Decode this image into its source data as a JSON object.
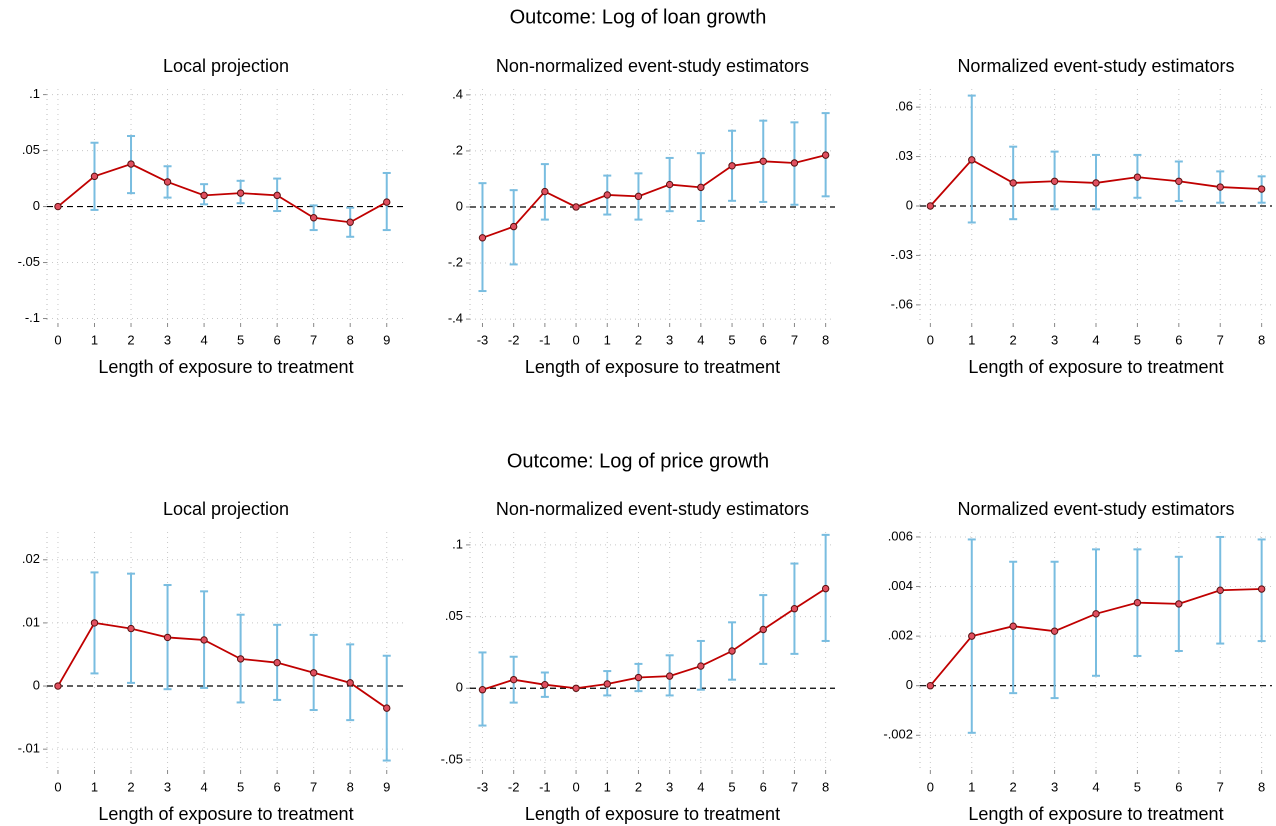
{
  "row_titles": [
    "Outcome: Log of loan growth",
    "Outcome: Log of price growth"
  ],
  "chart_data": [
    {
      "type": "line",
      "title": "Local projection",
      "x_label": "Length of exposure to treatment",
      "x": [
        0,
        1,
        2,
        3,
        4,
        5,
        6,
        7,
        8,
        9
      ],
      "series": [
        {
          "color": "#c00000",
          "ci_color": "#79bde0",
          "values": [
            0,
            0.027,
            0.038,
            0.022,
            0.01,
            0.012,
            0.01,
            -0.01,
            -0.014,
            0.004
          ],
          "lower": [
            null,
            -0.003,
            0.012,
            0.008,
            0.002,
            0.003,
            -0.004,
            -0.021,
            -0.027,
            -0.021
          ],
          "upper": [
            null,
            0.057,
            0.063,
            0.036,
            0.02,
            0.023,
            0.025,
            0.001,
            -0.001,
            0.03
          ]
        }
      ],
      "xlim": [
        -0.3,
        9.5
      ],
      "xticks": [
        0,
        1,
        2,
        3,
        4,
        5,
        6,
        7,
        8,
        9
      ],
      "ylim": [
        -0.104,
        0.105
      ],
      "yticks": [
        {
          "value": -0.1,
          "label": "-.1"
        },
        {
          "value": -0.05,
          "label": "-.05"
        },
        0,
        {
          "value": 0.05,
          "label": ".05"
        },
        {
          "value": 0.1,
          "label": ".1"
        }
      ],
      "grid": true,
      "zero_line": true
    },
    {
      "type": "line",
      "title": "Non-normalized event-study estimators",
      "x_label": "Length of exposure to treatment",
      "x": [
        -3,
        -2,
        -1,
        0,
        1,
        2,
        3,
        4,
        5,
        6,
        7,
        8
      ],
      "series": [
        {
          "color": "#c00000",
          "ci_color": "#79bde0",
          "values": [
            -0.11,
            -0.07,
            0.055,
            0,
            0.043,
            0.038,
            0.08,
            0.07,
            0.147,
            0.163,
            0.157,
            0.185
          ],
          "lower": [
            -0.3,
            -0.205,
            -0.045,
            null,
            -0.027,
            -0.045,
            -0.015,
            -0.05,
            0.022,
            0.018,
            0.008,
            0.038
          ],
          "upper": [
            0.085,
            0.06,
            0.153,
            null,
            0.112,
            0.12,
            0.175,
            0.192,
            0.272,
            0.308,
            0.302,
            0.335
          ]
        }
      ],
      "xlim": [
        -3.4,
        8.3
      ],
      "xticks": [
        -3,
        -2,
        -1,
        0,
        1,
        2,
        3,
        4,
        5,
        6,
        7,
        8
      ],
      "ylim": [
        -0.414,
        0.421
      ],
      "yticks": [
        {
          "value": -0.4,
          "label": "-.4"
        },
        {
          "value": -0.2,
          "label": "-.2"
        },
        0,
        {
          "value": 0.2,
          "label": ".2"
        },
        {
          "value": 0.4,
          "label": ".4"
        }
      ],
      "grid": true,
      "zero_line": true
    },
    {
      "type": "line",
      "title": "Normalized event-study estimators",
      "x_label": "Length of exposure to treatment",
      "x": [
        0,
        1,
        2,
        3,
        4,
        5,
        6,
        7,
        8
      ],
      "series": [
        {
          "color": "#c00000",
          "ci_color": "#79bde0",
          "values": [
            0,
            0.028,
            0.014,
            0.015,
            0.014,
            0.0175,
            0.015,
            0.0115,
            0.0103
          ],
          "lower": [
            null,
            -0.01,
            -0.008,
            -0.002,
            -0.002,
            0.005,
            0.003,
            0.002,
            0.002
          ],
          "upper": [
            null,
            0.067,
            0.036,
            0.033,
            0.031,
            0.031,
            0.027,
            0.021,
            0.018
          ]
        }
      ],
      "xlim": [
        -0.25,
        8.25
      ],
      "xticks": [
        0,
        1,
        2,
        3,
        4,
        5,
        6,
        7,
        8
      ],
      "ylim": [
        -0.071,
        0.071
      ],
      "yticks": [
        {
          "value": -0.06,
          "label": "-.06"
        },
        {
          "value": -0.03,
          "label": "-.03"
        },
        0,
        {
          "value": 0.03,
          "label": ".03"
        },
        {
          "value": 0.06,
          "label": ".06"
        }
      ],
      "grid": true,
      "zero_line": true
    },
    {
      "type": "line",
      "title": "Local projection",
      "x_label": "Length of exposure to treatment",
      "x": [
        0,
        1,
        2,
        3,
        4,
        5,
        6,
        7,
        8,
        9
      ],
      "series": [
        {
          "color": "#c00000",
          "ci_color": "#79bde0",
          "values": [
            0,
            0.01,
            0.0091,
            0.0077,
            0.0073,
            0.0043,
            0.0037,
            0.0021,
            0.0005,
            -0.0035
          ],
          "lower": [
            null,
            0.002,
            0.0005,
            -0.0005,
            -0.0003,
            -0.0026,
            -0.0022,
            -0.0038,
            -0.0054,
            -0.0118
          ],
          "upper": [
            null,
            0.018,
            0.0178,
            0.016,
            0.015,
            0.0113,
            0.0097,
            0.0081,
            0.0066,
            0.0048
          ]
        }
      ],
      "xlim": [
        -0.3,
        9.5
      ],
      "xticks": [
        0,
        1,
        2,
        3,
        4,
        5,
        6,
        7,
        8,
        9
      ],
      "ylim": [
        -0.0133,
        0.0244
      ],
      "yticks": [
        {
          "value": -0.01,
          "label": "-.01"
        },
        0,
        {
          "value": 0.01,
          "label": ".01"
        },
        {
          "value": 0.02,
          "label": ".02"
        }
      ],
      "grid": true,
      "zero_line": true
    },
    {
      "type": "line",
      "title": "Non-normalized event-study estimators",
      "x_label": "Length of exposure to treatment",
      "x": [
        -3,
        -2,
        -1,
        0,
        1,
        2,
        3,
        4,
        5,
        6,
        7,
        8
      ],
      "series": [
        {
          "color": "#c00000",
          "ci_color": "#79bde0",
          "values": [
            -0.001,
            0.006,
            0.0025,
            0,
            0.003,
            0.0075,
            0.0085,
            0.0155,
            0.026,
            0.041,
            0.0555,
            0.0695
          ],
          "lower": [
            -0.026,
            -0.01,
            -0.006,
            null,
            -0.005,
            -0.002,
            -0.005,
            -0.001,
            0.006,
            0.017,
            0.024,
            0.033
          ],
          "upper": [
            0.025,
            0.022,
            0.011,
            null,
            0.012,
            0.017,
            0.023,
            0.033,
            0.046,
            0.065,
            0.087,
            0.107
          ]
        }
      ],
      "xlim": [
        -3.4,
        8.3
      ],
      "xticks": [
        -3,
        -2,
        -1,
        0,
        1,
        2,
        3,
        4,
        5,
        6,
        7,
        8
      ],
      "ylim": [
        -0.057,
        0.109
      ],
      "yticks": [
        {
          "value": -0.05,
          "label": "-.05"
        },
        0,
        {
          "value": 0.05,
          "label": ".05"
        },
        {
          "value": 0.1,
          "label": ".1"
        }
      ],
      "grid": true,
      "zero_line": true
    },
    {
      "type": "line",
      "title": "Normalized event-study estimators",
      "x_label": "Length of exposure to treatment",
      "x": [
        0,
        1,
        2,
        3,
        4,
        5,
        6,
        7,
        8
      ],
      "series": [
        {
          "color": "#c00000",
          "ci_color": "#79bde0",
          "values": [
            0,
            0.002,
            0.0024,
            0.0022,
            0.0029,
            0.00335,
            0.0033,
            0.00385,
            0.0039
          ],
          "lower": [
            null,
            -0.0019,
            -0.0003,
            -0.0005,
            0.0004,
            0.0012,
            0.0014,
            0.0017,
            0.0018
          ],
          "upper": [
            null,
            0.0059,
            0.005,
            0.005,
            0.0055,
            0.0055,
            0.0052,
            0.006,
            0.0059
          ]
        }
      ],
      "xlim": [
        -0.25,
        8.25
      ],
      "xticks": [
        0,
        1,
        2,
        3,
        4,
        5,
        6,
        7,
        8
      ],
      "ylim": [
        -0.0034,
        0.0062
      ],
      "yticks": [
        {
          "value": -0.002,
          "label": "-.002"
        },
        0,
        {
          "value": 0.002,
          "label": ".002"
        },
        {
          "value": 0.004,
          "label": ".004"
        },
        {
          "value": 0.006,
          "label": ".006"
        }
      ],
      "grid": true,
      "zero_line": true
    }
  ]
}
